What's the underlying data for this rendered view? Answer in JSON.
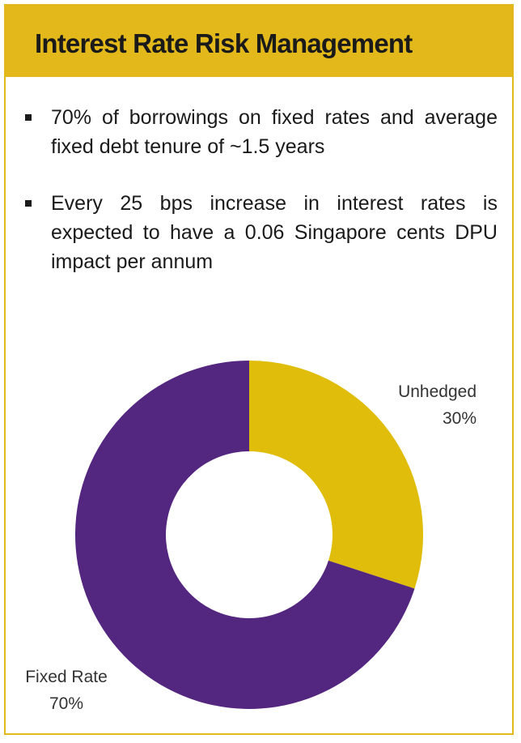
{
  "header": {
    "title": "Interest Rate Risk Management"
  },
  "bullets": [
    "70% of borrowings on fixed rates  and average fixed debt tenure of ~1.5 years",
    "Every 25 bps increase in interest rates is expected to have a 0.06 Singapore cents DPU impact per annum"
  ],
  "colors": {
    "header_bg": "#e2b81a",
    "border": "#e2b81a",
    "unhedged": "#e0bd0a",
    "fixed_rate": "#532680"
  },
  "chart_data": {
    "type": "pie",
    "donut": true,
    "slices": [
      {
        "label": "Unhedged",
        "value": 30,
        "value_label": "30%",
        "color": "#e0bd0a"
      },
      {
        "label": "Fixed Rate",
        "value": 70,
        "value_label": "70%",
        "color": "#532680"
      }
    ],
    "start_angle": "12 o'clock, clockwise"
  }
}
